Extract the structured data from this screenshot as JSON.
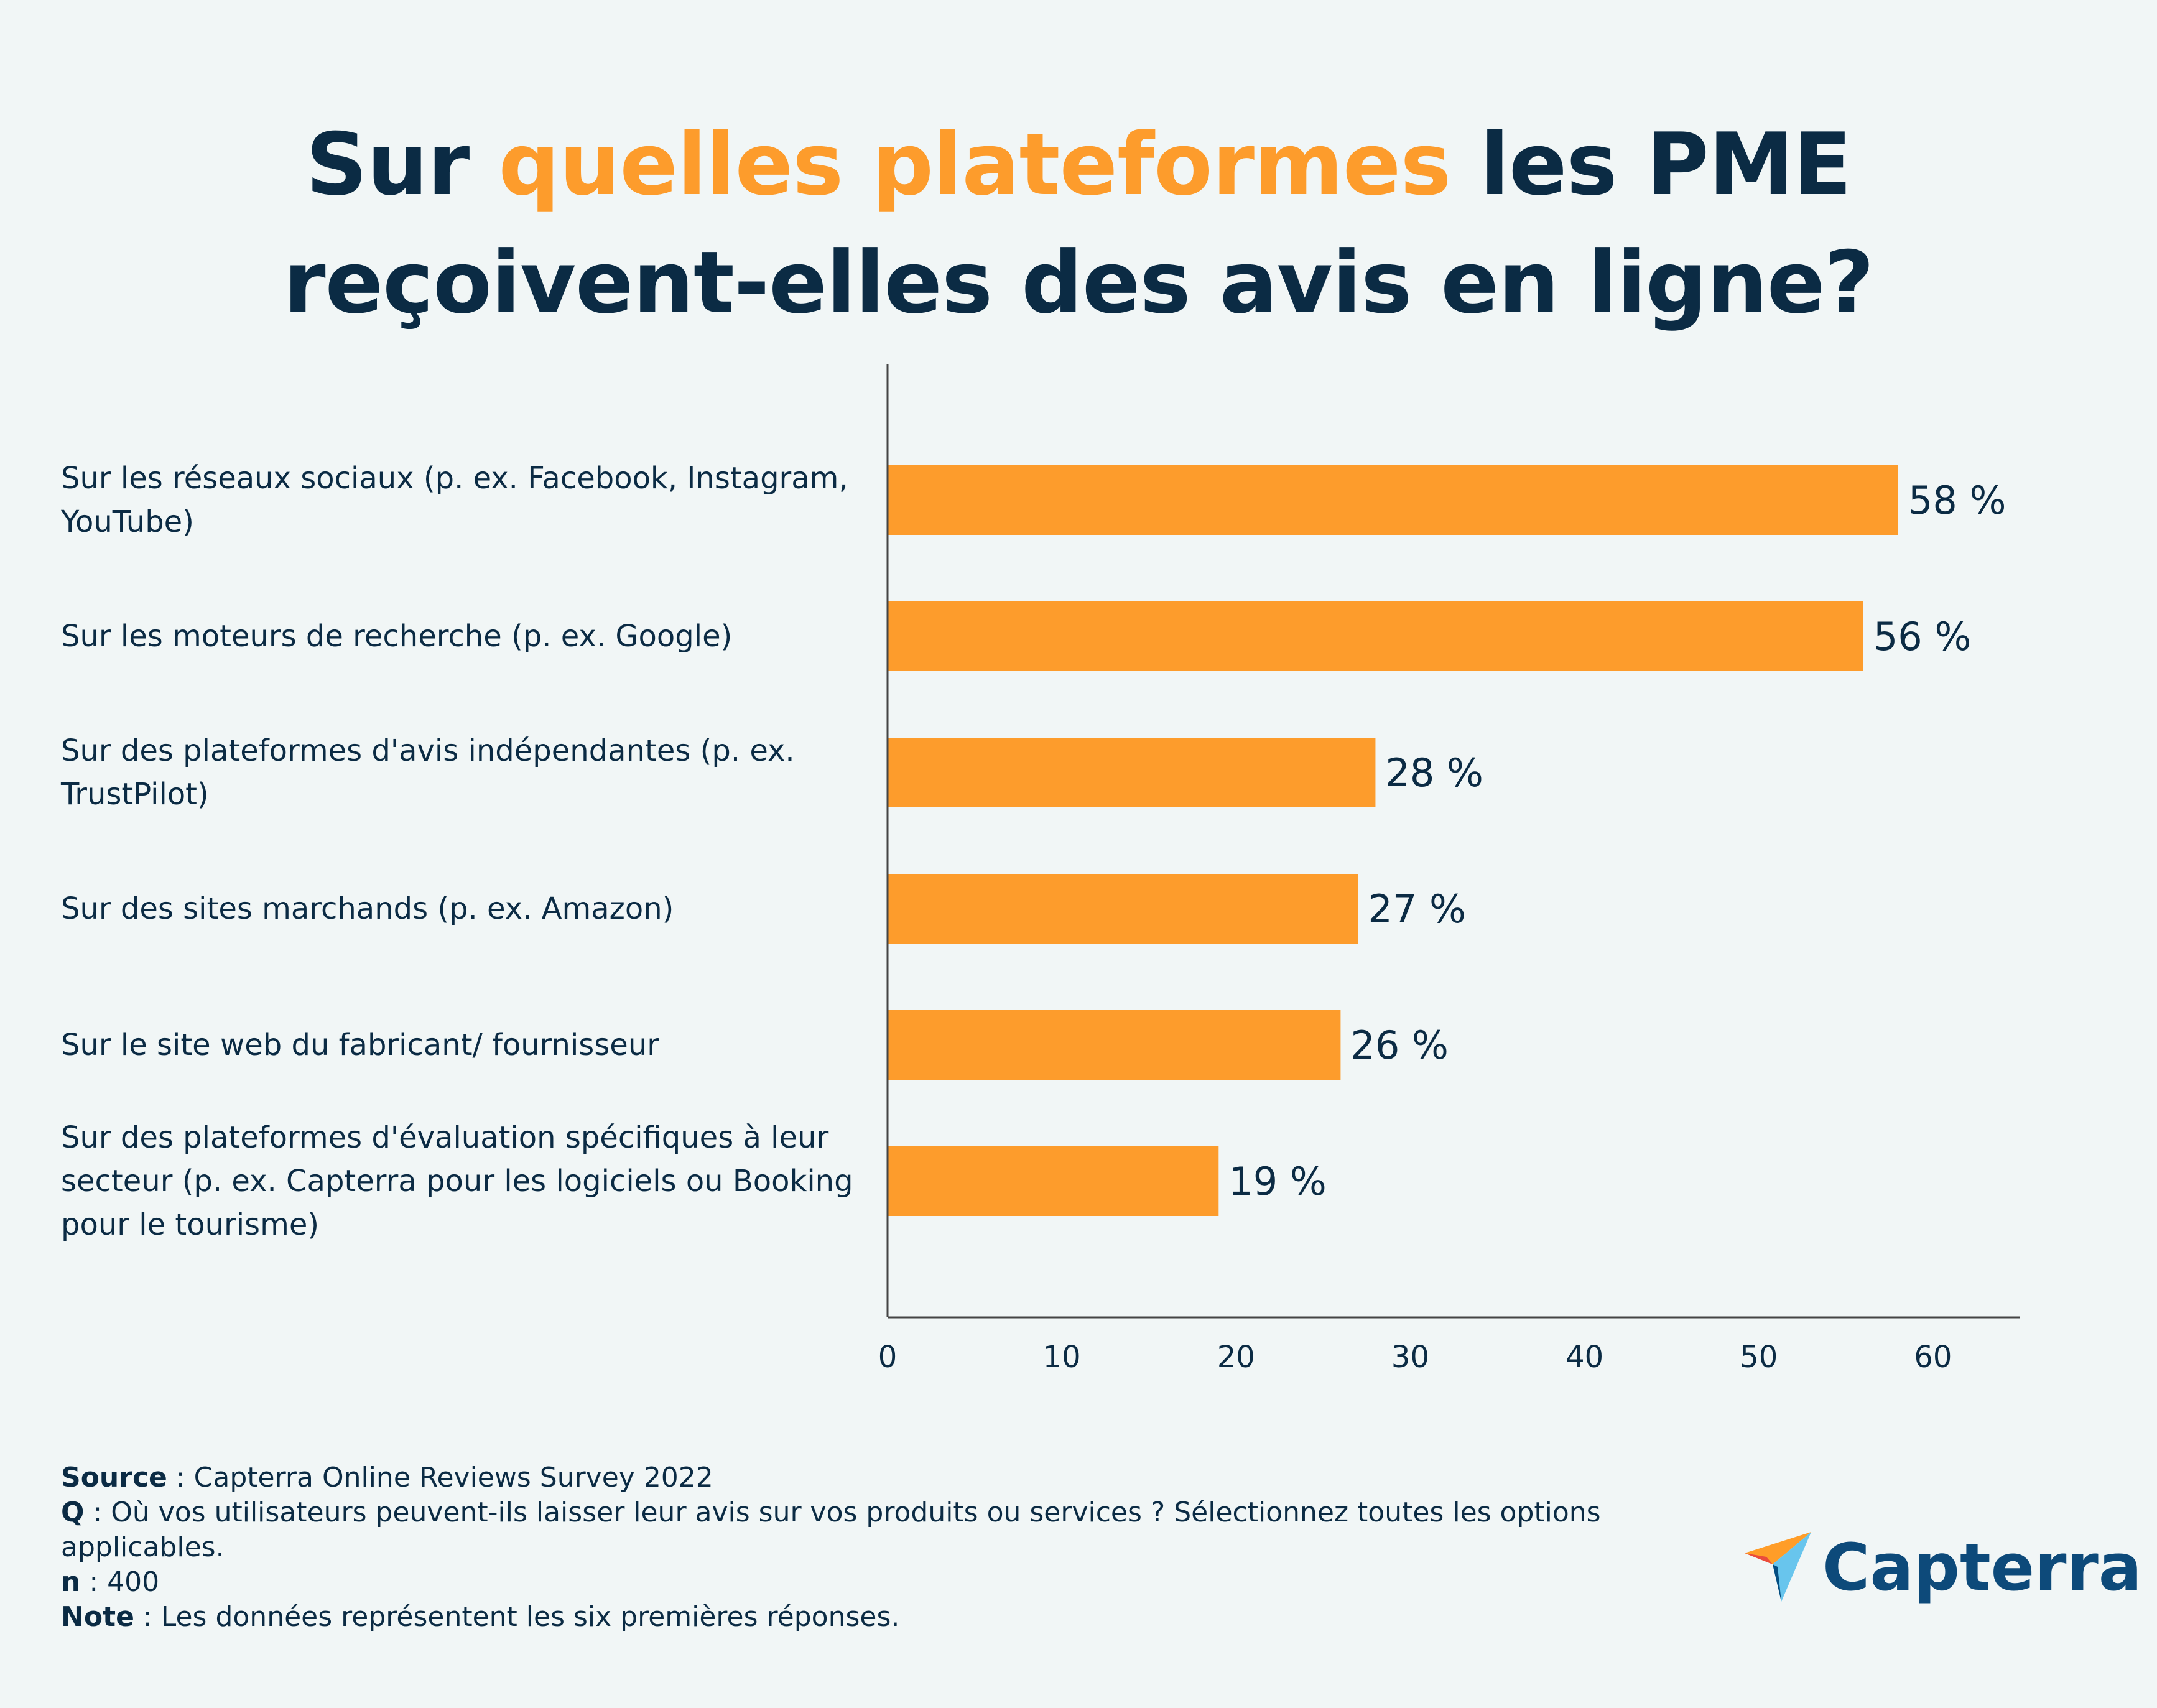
{
  "title": {
    "part1": "Sur ",
    "accent": "quelles plateformes",
    "part2": " les PME",
    "line2": "reçoivent-elles des avis en ligne?"
  },
  "colors": {
    "bar": "#fd9c2c",
    "text": "#0b2b44",
    "background": "#f1f6f6",
    "axis": "#444444"
  },
  "chart_data": {
    "type": "bar",
    "orientation": "horizontal",
    "categories": [
      "Sur les réseaux sociaux (p. ex. Facebook, Instagram, YouTube)",
      "Sur les moteurs de recherche (p. ex. Google)",
      "Sur des plateformes d'avis indépendantes (p. ex. TrustPilot)",
      "Sur des sites marchands (p. ex. Amazon)",
      "Sur le site web du fabricant/ fournisseur",
      "Sur des plateformes d'évaluation spécifiques à leur secteur (p. ex. Capterra pour les logiciels ou Booking pour le tourisme)"
    ],
    "values": [
      58,
      56,
      28,
      27,
      26,
      19
    ],
    "value_labels": [
      "58 %",
      "56 %",
      "28 %",
      "27 %",
      "26 %",
      "19 %"
    ],
    "xlim": [
      0,
      65
    ],
    "xticks": [
      0,
      10,
      20,
      30,
      40,
      50,
      60
    ],
    "xtick_labels": [
      "0",
      "10",
      "20",
      "30",
      "40",
      "50",
      "60"
    ],
    "xlabel": "",
    "ylabel": "",
    "grid": false,
    "legend": "none"
  },
  "footer": {
    "source_label": "Source",
    "source_text": " : Capterra Online Reviews Survey 2022",
    "q_label": "Q",
    "q_text": " : Où vos utilisateurs peuvent-ils laisser leur avis sur vos produits ou services ? Sélectionnez toutes les options applicables.",
    "n_label": "n",
    "n_text": " : 400",
    "note_label": "Note",
    "note_text": " : Les données représentent les six premières réponses."
  },
  "logo": {
    "text": "Capterra",
    "icon": "capterra-arrow-icon"
  }
}
